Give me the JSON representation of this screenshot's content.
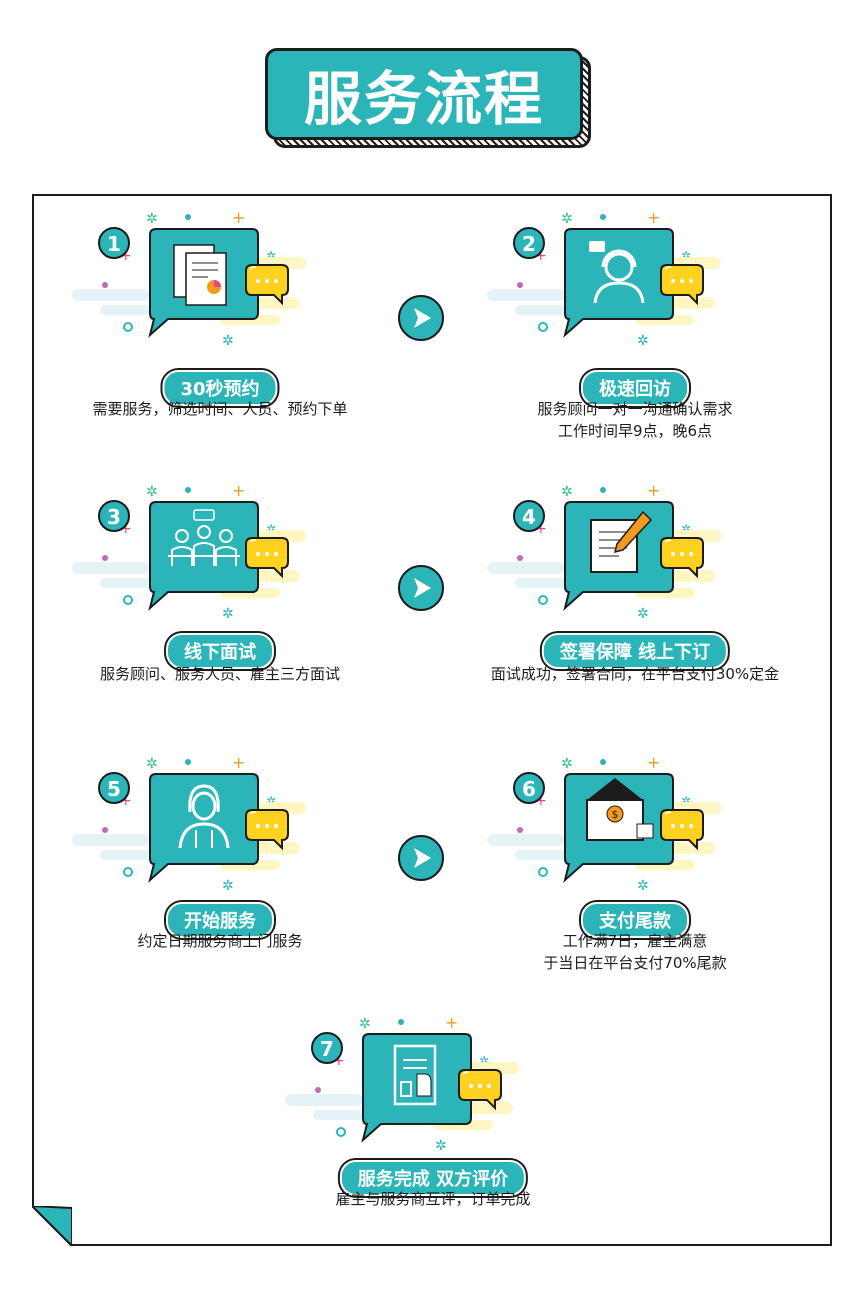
{
  "title": "服务流程",
  "steps": [
    {
      "num": "1",
      "label": "30秒预约",
      "desc": [
        "需要服务，筛选时间、人员、预约下单"
      ],
      "icon": "documents-icon"
    },
    {
      "num": "2",
      "label": "极速回访",
      "desc": [
        "服务顾问一对一沟通确认需求",
        "工作时间早9点，晚6点"
      ],
      "icon": "customer-service-icon"
    },
    {
      "num": "3",
      "label": "线下面试",
      "desc": [
        "服务顾问、服务人员、雇主三方面试"
      ],
      "icon": "meeting-icon"
    },
    {
      "num": "4",
      "label": "签署保障 线上下订",
      "desc": [
        "面试成功，签署合同，在平台支付30%定金"
      ],
      "icon": "contract-pen-icon"
    },
    {
      "num": "5",
      "label": "开始服务",
      "desc": [
        "约定日期服务商上门服务"
      ],
      "icon": "worker-icon"
    },
    {
      "num": "6",
      "label": "支付尾款",
      "desc": [
        "工作满7日，雇主满意",
        "于当日在平台支付70%尾款"
      ],
      "icon": "payment-envelope-icon"
    },
    {
      "num": "7",
      "label": "服务完成 双方评价",
      "desc": [
        "雇主与服务商互评，订单完成"
      ],
      "icon": "review-document-icon"
    }
  ],
  "colors": {
    "teal": "#2bb5b8",
    "yellow": "#ffd21f",
    "dark": "#1c1c1c",
    "pink": "#e8467c",
    "orange": "#f39a1e"
  }
}
